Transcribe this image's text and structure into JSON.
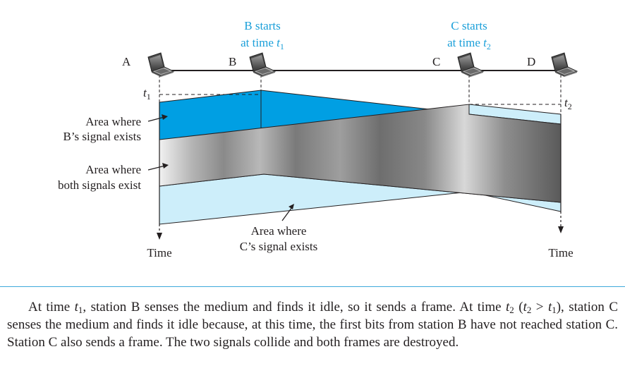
{
  "stations": [
    "A",
    "B",
    "C",
    "D"
  ],
  "annotations": {
    "b_start_line1": "B starts",
    "b_start_line2": "at time ",
    "c_start_line1": "C starts",
    "c_start_line2": "at time ",
    "t": "t",
    "one": "1",
    "two": "2"
  },
  "regions": {
    "b_signal_l1": "Area where",
    "b_signal_l2": "B’s signal exists",
    "both_l1": "Area where",
    "both_l2": "both signals exist",
    "c_signal_l1": "Area where",
    "c_signal_l2": "C’s signal exists"
  },
  "axis": {
    "time_left": "Time",
    "time_right": "Time"
  },
  "caption": {
    "s1": "At time ",
    "s2": ", station B senses the medium and finds it idle, so it sends a frame. At time ",
    "s3": " (",
    "s4": " > ",
    "s5": "), station C senses the medium and finds it idle because, at this time, the first bits from station B have not reached station C. Station C also sends a frame. The two signals collide and both frames are destroyed."
  },
  "colors": {
    "b_signal": "#009fe3",
    "c_signal": "#cdeefa",
    "both_signals": "#7a7a7a",
    "annotation_text": "#1a9fd9",
    "divider": "#3fa9db"
  }
}
